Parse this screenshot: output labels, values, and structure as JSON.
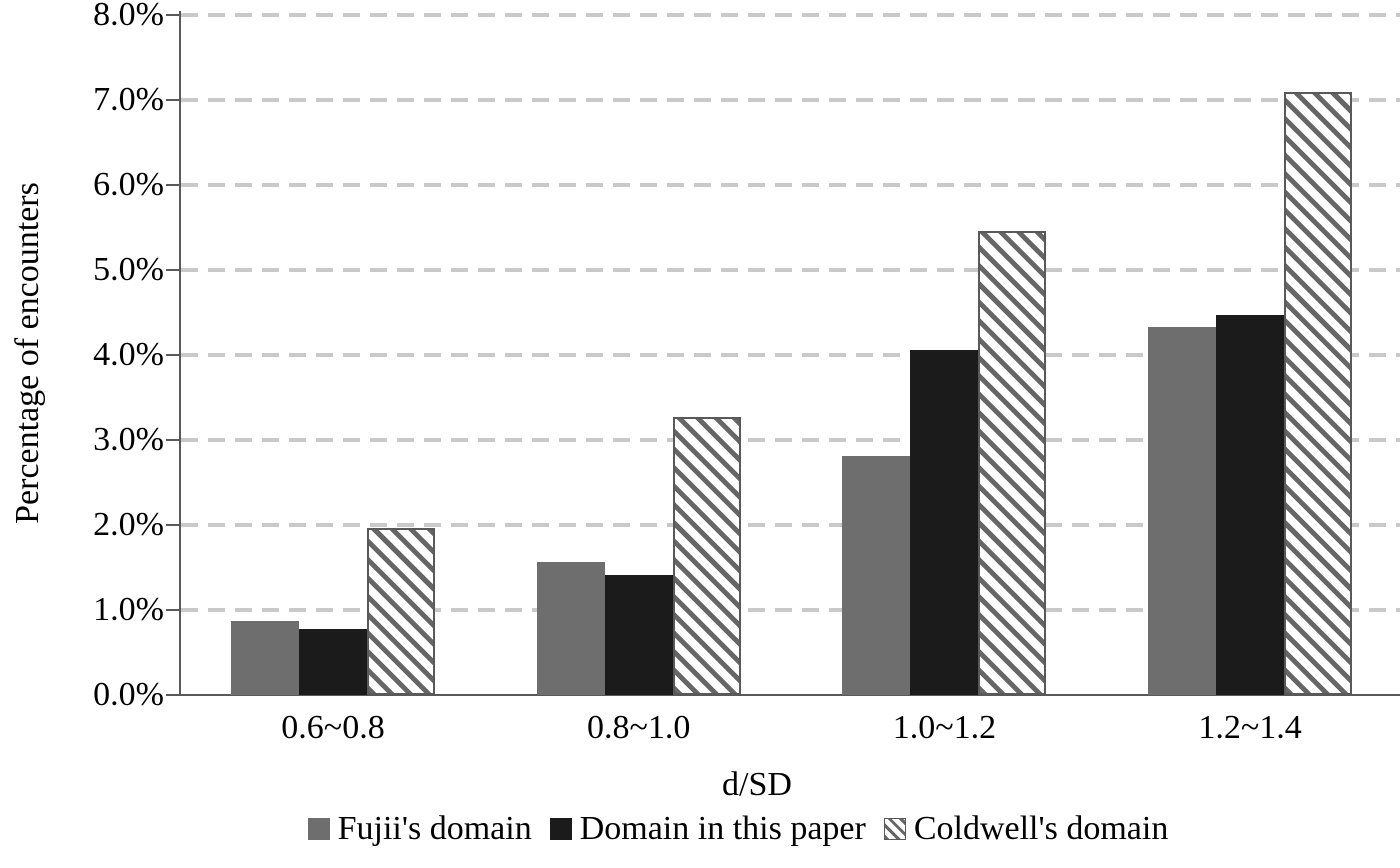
{
  "chart_data": {
    "type": "bar",
    "title": "",
    "xlabel": "d/SD",
    "ylabel": "Percentage of encounters",
    "categories": [
      "0.6~0.8",
      "0.8~1.0",
      "1.0~1.2",
      "1.2~1.4"
    ],
    "series": [
      {
        "name": "Fujii's domain",
        "style": "solid",
        "color": "#6e6e6e",
        "values": [
          0.87,
          1.57,
          2.81,
          4.33
        ]
      },
      {
        "name": "Domain in this paper",
        "style": "solid",
        "color": "#1b1b1b",
        "values": [
          0.78,
          1.41,
          4.06,
          4.47
        ]
      },
      {
        "name": "Coldwell's domain",
        "style": "hatched",
        "color": "#666666",
        "values": [
          1.97,
          3.27,
          5.46,
          7.1
        ]
      }
    ],
    "ylim": [
      0,
      8
    ],
    "ytick_step": 1,
    "ytick_labels": [
      "0.0%",
      "1.0%",
      "2.0%",
      "3.0%",
      "4.0%",
      "5.0%",
      "6.0%",
      "7.0%",
      "8.0%"
    ],
    "grid": "horizontal-dashed",
    "legend_position": "bottom"
  },
  "colors": {
    "gridline": "#c9c9c9",
    "axis": "#595959",
    "hatch_stripe": "#666666",
    "hatch_background": "#ffffff",
    "text": "#000000"
  }
}
